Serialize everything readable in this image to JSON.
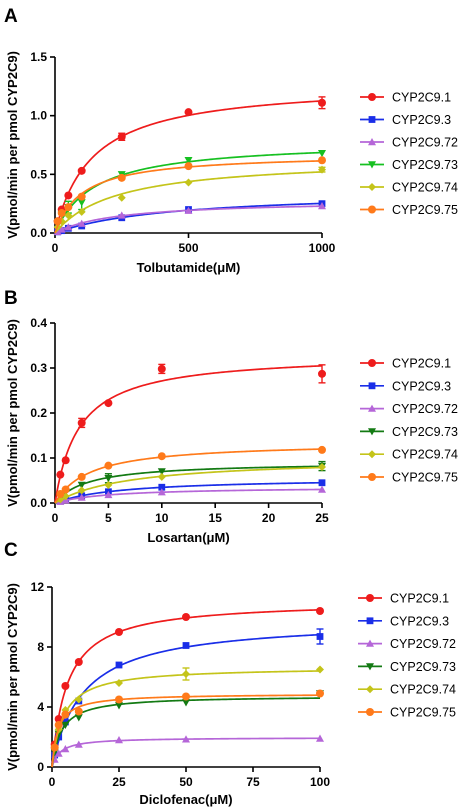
{
  "chart_data": [
    {
      "type": "scatter",
      "panel_label": "A",
      "xlabel": "Tolbutamide(μM)",
      "ylabel": "V(pmol/min per pmol CYP2C9)",
      "xlim": [
        0,
        1000
      ],
      "ylim": [
        0,
        1.5
      ],
      "xticks": [
        "0",
        "500",
        "1000"
      ],
      "yticks": [
        "0.0",
        "0.5",
        "1.0",
        "1.5"
      ],
      "legend_position": "right",
      "x": [
        10,
        25,
        50,
        100,
        250,
        500,
        1000
      ],
      "series": [
        {
          "name": "CYP2C9.1",
          "color": "#ee1c1c",
          "marker": "circle",
          "values": [
            0.1,
            0.2,
            0.32,
            0.53,
            0.82,
            1.03,
            1.11
          ],
          "errors": [
            0,
            0,
            0,
            0,
            0.03,
            0,
            0.05
          ]
        },
        {
          "name": "CYP2C9.3",
          "color": "#1a2ee8",
          "marker": "square",
          "values": [
            0.01,
            0.02,
            0.04,
            0.06,
            0.13,
            0.2,
            0.25
          ],
          "errors": [
            0,
            0,
            0,
            0,
            0,
            0,
            0
          ]
        },
        {
          "name": "CYP2C9.72",
          "color": "#b566d8",
          "marker": "triangle-up",
          "values": [
            0.01,
            0.03,
            0.05,
            0.08,
            0.15,
            0.19,
            0.23
          ],
          "errors": [
            0,
            0,
            0,
            0,
            0,
            0,
            0
          ]
        },
        {
          "name": "CYP2C9.73",
          "color": "#16c021",
          "marker": "triangle-down",
          "values": [
            0.08,
            0.16,
            0.22,
            0.26,
            0.5,
            0.62,
            0.68
          ],
          "errors": [
            0,
            0,
            0.05,
            0.06,
            0,
            0,
            0
          ]
        },
        {
          "name": "CYP2C9.74",
          "color": "#c4c41a",
          "marker": "diamond",
          "values": [
            0.05,
            0.1,
            0.15,
            0.18,
            0.3,
            0.43,
            0.54
          ],
          "errors": [
            0,
            0,
            0,
            0,
            0,
            0,
            0.02
          ]
        },
        {
          "name": "CYP2C9.75",
          "color": "#ff7a1a",
          "marker": "circle",
          "values": [
            0.1,
            0.17,
            0.22,
            0.31,
            0.47,
            0.57,
            0.62
          ],
          "errors": [
            0,
            0,
            0,
            0,
            0,
            0,
            0
          ]
        }
      ]
    },
    {
      "type": "scatter",
      "panel_label": "B",
      "xlabel": "Losartan(μM)",
      "ylabel": "V(pmol/min per pmol CYP2C9)",
      "xlim": [
        0,
        25
      ],
      "ylim": [
        0,
        0.4
      ],
      "xticks": [
        "0",
        "5",
        "10",
        "15",
        "20",
        "25"
      ],
      "yticks": [
        "0.0",
        "0.1",
        "0.2",
        "0.3",
        "0.4"
      ],
      "legend_position": "right",
      "x": [
        0.5,
        1,
        2.5,
        5,
        10,
        25
      ],
      "series": [
        {
          "name": "CYP2C9.1",
          "color": "#ee1c1c",
          "marker": "circle",
          "values": [
            0.063,
            0.095,
            0.178,
            0.222,
            0.298,
            0.287
          ],
          "errors": [
            0,
            0,
            0.01,
            0,
            0.01,
            0.02
          ]
        },
        {
          "name": "CYP2C9.3",
          "color": "#1a2ee8",
          "marker": "square",
          "values": [
            0.004,
            0.008,
            0.016,
            0.025,
            0.035,
            0.045
          ],
          "errors": [
            0,
            0,
            0,
            0,
            0,
            0
          ]
        },
        {
          "name": "CYP2C9.72",
          "color": "#b566d8",
          "marker": "triangle-up",
          "values": [
            0.003,
            0.006,
            0.012,
            0.018,
            0.024,
            0.03
          ],
          "errors": [
            0,
            0,
            0,
            0,
            0,
            0
          ]
        },
        {
          "name": "CYP2C9.73",
          "color": "#137a13",
          "marker": "triangle-down",
          "values": [
            0.015,
            0.025,
            0.04,
            0.055,
            0.07,
            0.082
          ],
          "errors": [
            0,
            0,
            0,
            0.01,
            0,
            0.01
          ]
        },
        {
          "name": "CYP2C9.74",
          "color": "#c4c41a",
          "marker": "diamond",
          "values": [
            0.008,
            0.015,
            0.028,
            0.04,
            0.058,
            0.08
          ],
          "errors": [
            0,
            0,
            0,
            0,
            0,
            0
          ]
        },
        {
          "name": "CYP2C9.75",
          "color": "#ff7a1a",
          "marker": "circle",
          "values": [
            0.02,
            0.03,
            0.058,
            0.083,
            0.104,
            0.118
          ],
          "errors": [
            0,
            0,
            0,
            0,
            0,
            0
          ]
        }
      ]
    },
    {
      "type": "scatter",
      "panel_label": "C",
      "xlabel": "Diclofenac(μM)",
      "ylabel": "V(pmol/min per pmol CYP2C9)",
      "xlim": [
        0,
        100
      ],
      "ylim": [
        0,
        12
      ],
      "xticks": [
        "0",
        "25",
        "50",
        "75",
        "100"
      ],
      "yticks": [
        "0",
        "4",
        "8",
        "12"
      ],
      "legend_position": "right",
      "x": [
        1,
        2.5,
        5,
        10,
        25,
        50,
        100
      ],
      "series": [
        {
          "name": "CYP2C9.1",
          "color": "#ee1c1c",
          "marker": "circle",
          "values": [
            1.5,
            3.2,
            5.4,
            7.0,
            9.0,
            10.0,
            10.4
          ],
          "errors": [
            0,
            0,
            0,
            0,
            0,
            0,
            0
          ]
        },
        {
          "name": "CYP2C9.3",
          "color": "#1a2ee8",
          "marker": "square",
          "values": [
            0.8,
            2.0,
            3.0,
            4.4,
            6.8,
            8.1,
            8.7
          ],
          "errors": [
            0,
            0,
            0,
            0,
            0,
            0,
            0.5
          ]
        },
        {
          "name": "CYP2C9.72",
          "color": "#b566d8",
          "marker": "triangle-up",
          "values": [
            0.5,
            0.9,
            1.2,
            1.5,
            1.8,
            1.85,
            1.9
          ],
          "errors": [
            0,
            0,
            0,
            0,
            0,
            0,
            0
          ]
        },
        {
          "name": "CYP2C9.73",
          "color": "#137a13",
          "marker": "triangle-down",
          "values": [
            1.0,
            2.2,
            2.8,
            3.3,
            4.1,
            4.3,
            4.9
          ],
          "errors": [
            0,
            0,
            0,
            0,
            0,
            0,
            0
          ]
        },
        {
          "name": "CYP2C9.74",
          "color": "#c4c41a",
          "marker": "diamond",
          "values": [
            1.3,
            2.5,
            3.8,
            4.5,
            5.6,
            6.2,
            6.5
          ],
          "errors": [
            0,
            0,
            0,
            0,
            0,
            0.4,
            0
          ]
        },
        {
          "name": "CYP2C9.75",
          "color": "#ff7a1a",
          "marker": "circle",
          "values": [
            1.3,
            2.8,
            3.5,
            3.7,
            4.5,
            4.7,
            4.9
          ],
          "errors": [
            0,
            0,
            0,
            0,
            0,
            0,
            0
          ]
        }
      ]
    }
  ]
}
